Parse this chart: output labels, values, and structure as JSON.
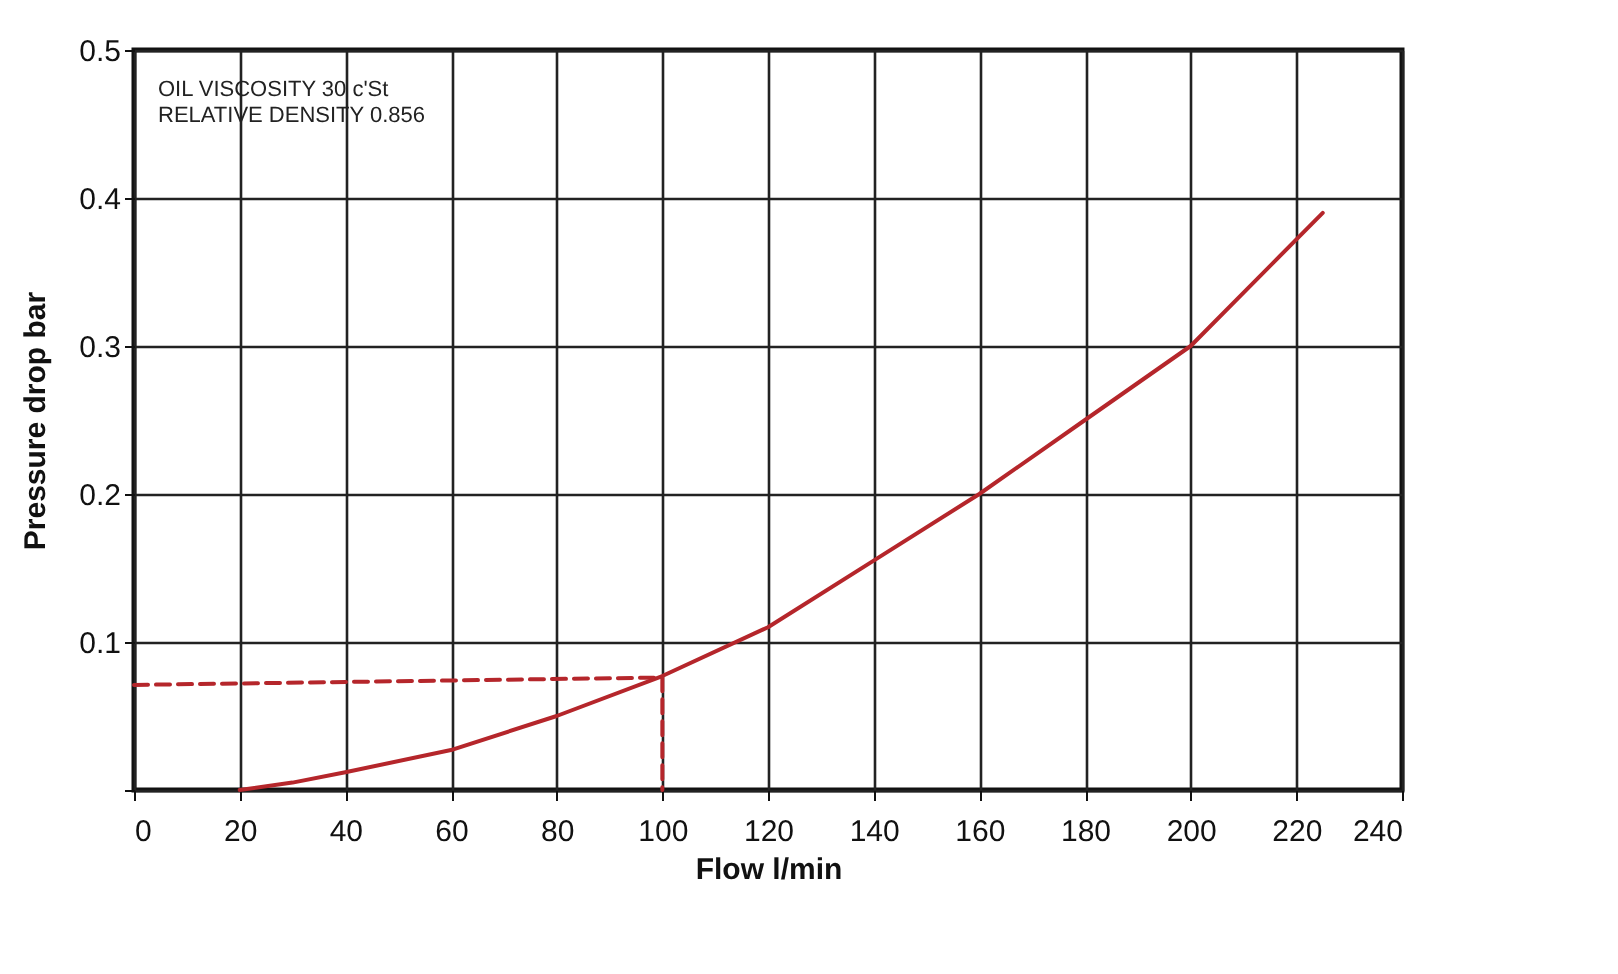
{
  "chart_data": {
    "type": "line",
    "xlabel": "Flow l/min",
    "ylabel": "Pressure drop bar",
    "annotations": [
      "OIL VISCOSITY 30 c'St",
      "RELATIVE DENSITY 0.856"
    ],
    "xlim": [
      0,
      240
    ],
    "xticks": [
      0,
      20,
      40,
      60,
      80,
      100,
      120,
      140,
      160,
      180,
      200,
      220,
      240
    ],
    "ylim": [
      0,
      0.5
    ],
    "yticks": [
      {
        "value": 0,
        "label": null
      },
      0.1,
      0.2,
      0.3,
      0.4,
      0.5
    ],
    "grid": true,
    "marker": "none",
    "series": [
      {
        "color": "#b5262b",
        "line_style": "solid",
        "x": [
          20,
          30,
          40,
          60,
          80,
          100,
          120,
          140,
          160,
          180,
          200,
          225
        ],
        "values": [
          0.0,
          0.005,
          0.012,
          0.027,
          0.05,
          0.077,
          0.11,
          0.155,
          0.2,
          0.25,
          0.3,
          0.39
        ]
      },
      {
        "color": "#b5262b",
        "line_style": "dashed",
        "x": [
          0,
          100,
          100
        ],
        "values": [
          0.071,
          0.076,
          0
        ]
      }
    ]
  }
}
